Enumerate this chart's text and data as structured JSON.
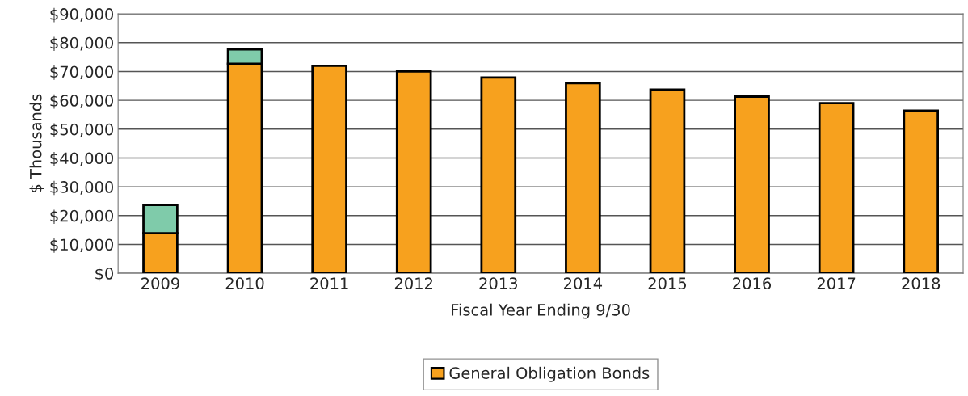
{
  "chart_data": {
    "type": "bar",
    "stacked": true,
    "xlabel": "Fiscal Year Ending 9/30",
    "ylabel": "$ Thousands",
    "categories": [
      "2009",
      "2010",
      "2011",
      "2012",
      "2013",
      "2014",
      "2015",
      "2016",
      "2017",
      "2018"
    ],
    "series": [
      {
        "name": "General Obligation Bonds",
        "color": "#f7a11e",
        "values": [
          13900,
          72700,
          72000,
          70000,
          67900,
          66000,
          63700,
          61300,
          59000,
          56400
        ]
      },
      {
        "color": "#7fcbaa",
        "values": [
          9800,
          5000,
          null,
          null,
          null,
          null,
          null,
          null,
          null,
          null
        ]
      }
    ],
    "ylim": [
      0,
      90000
    ],
    "yticks": [
      {
        "value": 0,
        "label": "$0"
      },
      {
        "value": 10000,
        "label": "$10,000"
      },
      {
        "value": 20000,
        "label": "$20,000"
      },
      {
        "value": 30000,
        "label": "$30,000"
      },
      {
        "value": 40000,
        "label": "$40,000"
      },
      {
        "value": 50000,
        "label": "$50,000"
      },
      {
        "value": 60000,
        "label": "$60,000"
      },
      {
        "value": 70000,
        "label": "$70,000"
      },
      {
        "value": 80000,
        "label": "$80,000"
      },
      {
        "value": 90000,
        "label": "$90,000"
      }
    ],
    "grid": "y",
    "legend": "bottom"
  }
}
